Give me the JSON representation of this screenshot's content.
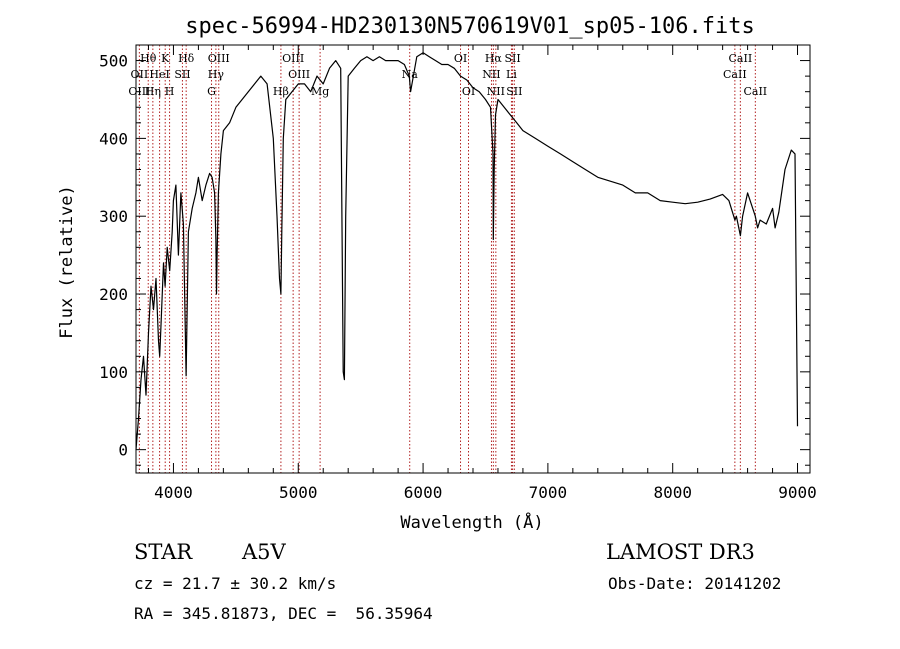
{
  "chart_data": {
    "type": "line",
    "title": "spec-56994-HD230130N570619V01_sp05-106.fits",
    "xlabel": "Wavelength (Å)",
    "ylabel": "Flux (relative)",
    "xlim": [
      3700,
      9100
    ],
    "ylim": [
      -30,
      520
    ],
    "xticks": [
      4000,
      5000,
      6000,
      7000,
      8000,
      9000
    ],
    "yticks": [
      0,
      100,
      200,
      300,
      400,
      500
    ],
    "series": [
      {
        "name": "flux",
        "x": [
          3700,
          3720,
          3740,
          3760,
          3780,
          3800,
          3820,
          3840,
          3860,
          3880,
          3890,
          3900,
          3920,
          3933,
          3950,
          3970,
          3990,
          4000,
          4020,
          4040,
          4060,
          4080,
          4101,
          4120,
          4150,
          4180,
          4200,
          4230,
          4260,
          4290,
          4310,
          4330,
          4340,
          4345,
          4350,
          4360,
          4380,
          4400,
          4450,
          4500,
          4550,
          4600,
          4650,
          4700,
          4750,
          4800,
          4830,
          4850,
          4861,
          4868,
          4880,
          4900,
          4950,
          5000,
          5050,
          5100,
          5150,
          5200,
          5250,
          5300,
          5340,
          5360,
          5370,
          5380,
          5400,
          5450,
          5500,
          5550,
          5600,
          5650,
          5700,
          5750,
          5800,
          5850,
          5890,
          5900,
          5950,
          6000,
          6050,
          6100,
          6150,
          6200,
          6250,
          6300,
          6350,
          6400,
          6450,
          6500,
          6540,
          6560,
          6563,
          6570,
          6580,
          6600,
          6650,
          6700,
          6750,
          6800,
          6900,
          7000,
          7100,
          7200,
          7300,
          7400,
          7500,
          7600,
          7700,
          7800,
          7900,
          8000,
          8100,
          8200,
          8300,
          8400,
          8450,
          8498,
          8510,
          8542,
          8560,
          8600,
          8662,
          8680,
          8700,
          8750,
          8800,
          8820,
          8850,
          8900,
          8950,
          8980,
          9000
        ],
        "values": [
          0,
          40,
          90,
          120,
          70,
          150,
          210,
          180,
          220,
          140,
          120,
          160,
          240,
          210,
          260,
          230,
          280,
          320,
          340,
          250,
          330,
          290,
          95,
          280,
          310,
          330,
          350,
          320,
          340,
          355,
          350,
          330,
          270,
          200,
          250,
          330,
          380,
          410,
          420,
          440,
          450,
          460,
          470,
          480,
          470,
          400,
          300,
          220,
          200,
          280,
          400,
          450,
          460,
          470,
          470,
          460,
          480,
          470,
          490,
          500,
          490,
          100,
          90,
          300,
          480,
          490,
          500,
          505,
          500,
          505,
          500,
          500,
          500,
          495,
          480,
          460,
          505,
          510,
          505,
          500,
          495,
          495,
          490,
          480,
          475,
          465,
          460,
          450,
          440,
          380,
          270,
          360,
          430,
          450,
          440,
          430,
          420,
          410,
          400,
          390,
          380,
          370,
          360,
          350,
          345,
          340,
          330,
          330,
          320,
          318,
          316,
          318,
          322,
          328,
          320,
          295,
          300,
          275,
          300,
          330,
          300,
          285,
          295,
          290,
          310,
          285,
          305,
          360,
          385,
          380,
          30
        ]
      }
    ],
    "line_labels": [
      {
        "text": "Hθ",
        "wl": 3798,
        "row": 1
      },
      {
        "text": "OII",
        "wl": 3727,
        "row": 2
      },
      {
        "text": "OIII",
        "wl": 3727,
        "row": 3
      },
      {
        "text": "K",
        "wl": 3934,
        "row": 1
      },
      {
        "text": "H",
        "wl": 3969,
        "row": 3
      },
      {
        "text": "HeI",
        "wl": 3889,
        "row": 2
      },
      {
        "text": "Hη",
        "wl": 3835,
        "row": 3
      },
      {
        "text": "Hδ",
        "wl": 4102,
        "row": 1
      },
      {
        "text": "SII",
        "wl": 4072,
        "row": 2
      },
      {
        "text": "OIII",
        "wl": 4363,
        "row": 1
      },
      {
        "text": "Hγ",
        "wl": 4340,
        "row": 2
      },
      {
        "text": "G",
        "wl": 4305,
        "row": 3
      },
      {
        "text": "Hβ",
        "wl": 4861,
        "row": 3
      },
      {
        "text": "OIII",
        "wl": 4959,
        "row": 1
      },
      {
        "text": "OIII",
        "wl": 5007,
        "row": 2
      },
      {
        "text": "Mg",
        "wl": 5175,
        "row": 3
      },
      {
        "text": "Na",
        "wl": 5893,
        "row": 2
      },
      {
        "text": "OI",
        "wl": 6300,
        "row": 1
      },
      {
        "text": "OI",
        "wl": 6364,
        "row": 3
      },
      {
        "text": "Hα",
        "wl": 6563,
        "row": 1
      },
      {
        "text": "NII",
        "wl": 6548,
        "row": 2
      },
      {
        "text": "NII",
        "wl": 6583,
        "row": 3
      },
      {
        "text": "SII",
        "wl": 6717,
        "row": 1
      },
      {
        "text": "Li",
        "wl": 6708,
        "row": 2
      },
      {
        "text": "SII",
        "wl": 6731,
        "row": 3
      },
      {
        "text": "CaII",
        "wl": 8542,
        "row": 1
      },
      {
        "text": "CaII",
        "wl": 8498,
        "row": 2
      },
      {
        "text": "CaII",
        "wl": 8662,
        "row": 3
      }
    ],
    "marker_lines": [
      3727,
      3798,
      3835,
      3889,
      3934,
      3969,
      4072,
      4102,
      4305,
      4340,
      4363,
      4861,
      4959,
      5007,
      5175,
      5893,
      6300,
      6364,
      6548,
      6563,
      6583,
      6708,
      6717,
      6731,
      8498,
      8542,
      8662
    ]
  },
  "footer": {
    "object_class": "STAR",
    "subclass": "A5V",
    "survey": "LAMOST DR3",
    "cz": "cz = 21.7 ± 30.2 km/s",
    "obs_date": "Obs-Date: 20141202",
    "coords": "RA = 345.81873, DEC =  56.35964"
  },
  "colors": {
    "line": "#000000",
    "marker": "#b22222",
    "background": "#ffffff"
  }
}
